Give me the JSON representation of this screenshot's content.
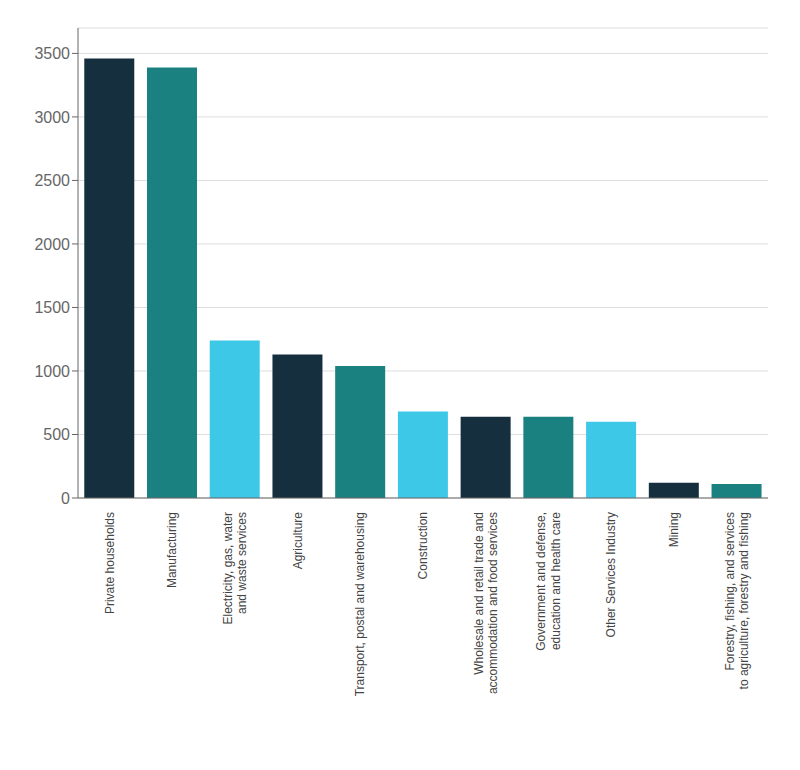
{
  "chart_data": {
    "type": "bar",
    "categories": [
      "Private households",
      "Manufacturing",
      "Electricity, gas, water\nand waste services",
      "Agriculture",
      "Transport, postal and warehousing",
      "Construction",
      "Wholesale and retail trade and\naccommodation and food services",
      "Government and defense,\neducation and health care",
      "Other Services Industry",
      "Mining",
      "Forestry, fishing, and services\nto agriculture, forestry and fishing"
    ],
    "values": [
      3460,
      3390,
      1240,
      1130,
      1040,
      680,
      640,
      640,
      600,
      120,
      110
    ],
    "colors": [
      "#152f3e",
      "#1a8080",
      "#3ec8e8",
      "#152f3e",
      "#1a8080",
      "#3ec8e8",
      "#152f3e",
      "#1a8080",
      "#3ec8e8",
      "#152f3e",
      "#1a8080"
    ],
    "ylim": [
      0,
      3700
    ],
    "yticks": [
      0,
      500,
      1000,
      1500,
      2000,
      2500,
      3000,
      3500
    ],
    "grid": true
  }
}
